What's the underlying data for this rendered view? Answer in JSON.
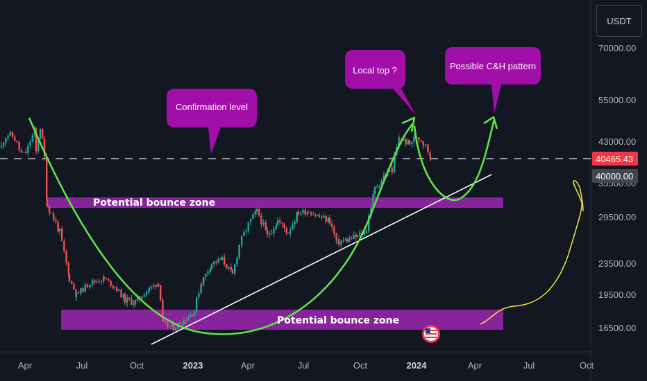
{
  "currency": "USDT",
  "chart_data": {
    "type": "candlestick",
    "x_ticks": [
      {
        "label": "Apr",
        "bold": false
      },
      {
        "label": "Jul",
        "bold": false
      },
      {
        "label": "Oct",
        "bold": false
      },
      {
        "label": "2023",
        "bold": true
      },
      {
        "label": "Apr",
        "bold": false
      },
      {
        "label": "Jul",
        "bold": false
      },
      {
        "label": "Oct",
        "bold": false
      },
      {
        "label": "2024",
        "bold": true
      },
      {
        "label": "Apr",
        "bold": false
      },
      {
        "label": "Jul",
        "bold": false
      },
      {
        "label": "Oct",
        "bold": false
      }
    ],
    "y_ticks": [
      "70000.00",
      "55000.00",
      "43000.00",
      "35500.00",
      "29500.00",
      "23500.00",
      "19500.00",
      "16500.00"
    ],
    "price_tags": [
      {
        "value": "40465.43",
        "color": "#f23645"
      },
      {
        "value": "40000.00",
        "color": "#434651"
      }
    ],
    "current_price": 40465.43,
    "colors": {
      "up": "#26a69a",
      "down": "#ef5350",
      "zone": "#9c27b0",
      "curve": "#5fe34a",
      "trend": "#ffffff",
      "projection": "#f5e642"
    },
    "zones": [
      {
        "label": "Potential bounce zone"
      },
      {
        "label": "Potential bounce zone"
      }
    ],
    "callouts": [
      {
        "text": "Confirmation level"
      },
      {
        "text": "Local top ?"
      },
      {
        "text": "Possible C&H pattern"
      }
    ],
    "anchors": [
      [
        52,
        41000
      ],
      [
        58,
        47000
      ],
      [
        64,
        40000
      ],
      [
        68,
        31500
      ],
      [
        74,
        30000
      ],
      [
        86,
        27500
      ],
      [
        100,
        21500
      ],
      [
        110,
        19500
      ],
      [
        130,
        21000
      ],
      [
        150,
        21500
      ],
      [
        165,
        20500
      ],
      [
        180,
        19000
      ],
      [
        195,
        18800
      ],
      [
        215,
        20200
      ],
      [
        228,
        21000
      ],
      [
        235,
        16800
      ],
      [
        250,
        16500
      ],
      [
        265,
        17200
      ],
      [
        280,
        18000
      ],
      [
        290,
        21000
      ],
      [
        305,
        23500
      ],
      [
        320,
        24000
      ],
      [
        335,
        22000
      ],
      [
        345,
        26000
      ],
      [
        358,
        28500
      ],
      [
        370,
        30500
      ],
      [
        385,
        27000
      ],
      [
        400,
        29000
      ],
      [
        415,
        27500
      ],
      [
        430,
        30300
      ],
      [
        445,
        30500
      ],
      [
        460,
        29500
      ],
      [
        475,
        29000
      ],
      [
        485,
        26200
      ],
      [
        500,
        26500
      ],
      [
        515,
        27000
      ],
      [
        528,
        27800
      ],
      [
        540,
        34500
      ],
      [
        555,
        37000
      ],
      [
        565,
        38000
      ],
      [
        575,
        43800
      ],
      [
        590,
        42500
      ],
      [
        600,
        44500
      ],
      [
        610,
        42800
      ],
      [
        620,
        40400
      ]
    ]
  }
}
